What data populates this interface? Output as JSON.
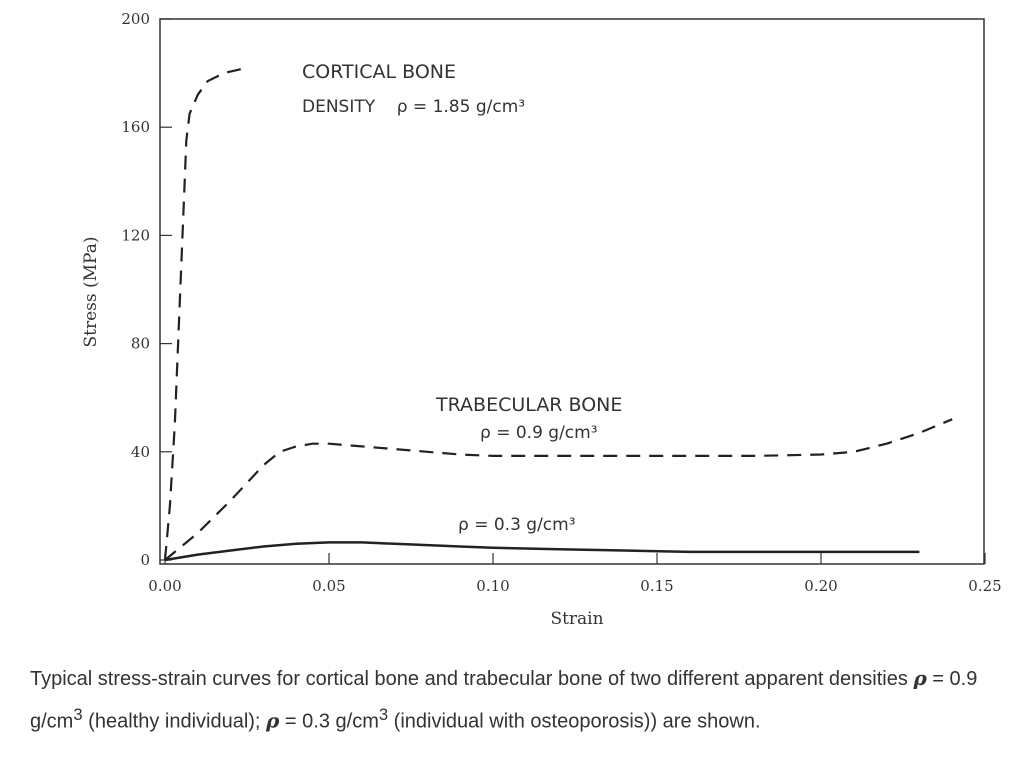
{
  "chart_data": {
    "type": "line",
    "title": "",
    "xlabel": "Strain",
    "ylabel": "Stress (MPa)",
    "xlim": [
      0,
      0.25
    ],
    "ylim": [
      0,
      200
    ],
    "xticks": [
      0,
      0.05,
      0.1,
      0.15,
      0.2,
      0.25
    ],
    "xtick_labels": [
      "0.00",
      "0.05",
      "0.10",
      "0.15",
      "0.20",
      "0.25"
    ],
    "yticks": [
      0,
      40,
      80,
      120,
      160,
      200
    ],
    "ytick_labels": [
      "0",
      "40",
      "80",
      "120",
      "160",
      "200"
    ],
    "grid": false,
    "series": [
      {
        "style": "dashed",
        "x": [
          0,
          0.0015,
          0.003,
          0.004,
          0.005,
          0.006,
          0.0065,
          0.0075,
          0.01,
          0.013,
          0.018,
          0.025
        ],
        "y": [
          0,
          20,
          50,
          80,
          110,
          140,
          155,
          165,
          172,
          177,
          180,
          182
        ]
      },
      {
        "style": "dashed",
        "x": [
          0,
          0.01,
          0.02,
          0.03,
          0.035,
          0.04,
          0.045,
          0.05,
          0.06,
          0.07,
          0.08,
          0.09,
          0.1,
          0.12,
          0.14,
          0.16,
          0.18,
          0.2,
          0.21,
          0.22,
          0.23,
          0.24
        ],
        "y": [
          0,
          10,
          22,
          35,
          40,
          42,
          43,
          43,
          42,
          41,
          40,
          39,
          38.5,
          38.5,
          38.5,
          38.5,
          38.5,
          39,
          40,
          43,
          47,
          52
        ]
      },
      {
        "style": "solid",
        "x": [
          0,
          0.01,
          0.02,
          0.03,
          0.04,
          0.05,
          0.06,
          0.07,
          0.08,
          0.09,
          0.1,
          0.12,
          0.14,
          0.16,
          0.18,
          0.2,
          0.23
        ],
        "y": [
          0,
          2,
          3.5,
          5,
          6,
          6.5,
          6.5,
          6,
          5.5,
          5,
          4.5,
          4,
          3.5,
          3,
          3,
          3,
          3
        ]
      }
    ],
    "annotations": [
      {
        "id": "cortical",
        "lines": [
          "CORTICAL BONE",
          "DENSITY    ρ = 1.85 g/cm³"
        ]
      },
      {
        "id": "trab_high",
        "lines": [
          "TRABECULAR BONE",
          "ρ = 0.9 g/cm³"
        ]
      },
      {
        "id": "trab_low",
        "lines": [
          "ρ = 0.3 g/cm³"
        ]
      }
    ]
  },
  "caption": {
    "part1": "Typical stress-strain curves for cortical bone and trabecular bone of two different apparent densities ",
    "rho1": "ρ",
    "part2": " = 0.9 g/cm",
    "sup1": "3",
    "part3": " (healthy individual); ",
    "rho2": "ρ",
    "part4": " = 0.3 g/cm",
    "sup2": "3",
    "part5": " (individual with osteoporosis)) are shown."
  }
}
